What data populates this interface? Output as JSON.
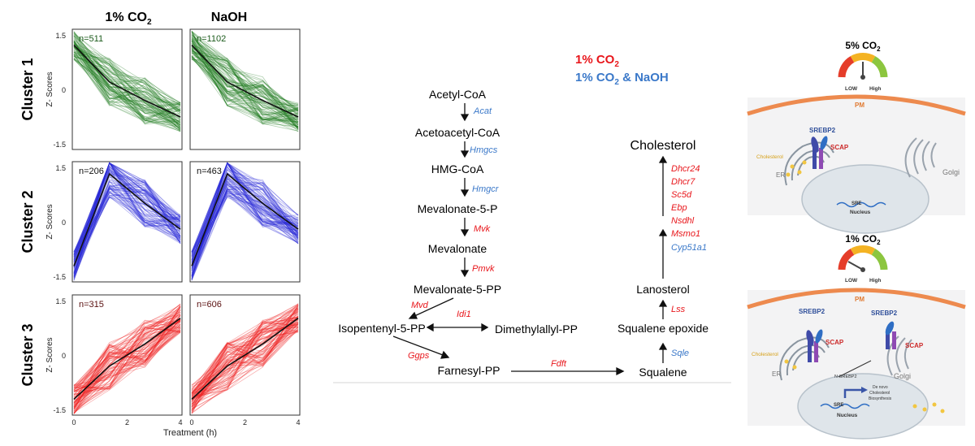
{
  "panelA": {
    "columns": [
      "1% CO",
      "NaOH"
    ],
    "subscript": "2",
    "xlabel": "Treatment (h)",
    "ylabel": "Z- Scores",
    "xticks": [
      "0",
      "2",
      "4"
    ],
    "yticks": [
      "1.5",
      "0",
      "-1.5"
    ],
    "clusters": [
      {
        "label": "Cluster 1",
        "color": "#1f7a1f",
        "counts": [
          "n=511",
          "n=1102"
        ],
        "count_color": "#1a5a1a",
        "mean_profile": [
          1.2,
          0.2,
          -0.3,
          -0.75
        ]
      },
      {
        "label": "Cluster 2",
        "color": "#2828d8",
        "counts": [
          "n=206",
          "n=463"
        ],
        "count_color": "#111111",
        "mean_profile": [
          -1.2,
          1.3,
          0.5,
          -0.2
        ]
      },
      {
        "label": "Cluster 3",
        "color": "#ee1c1c",
        "counts": [
          "n=315",
          "n=606"
        ],
        "count_color": "#5a1010",
        "mean_profile": [
          -1.2,
          -0.3,
          0.3,
          1.0
        ]
      }
    ]
  },
  "pathway": {
    "legend": {
      "line1": "1% CO",
      "line2a": "1% CO",
      "line2b": " & NaOH",
      "sub": "2",
      "red": "#e8161b",
      "blue": "#3a78c9"
    },
    "metabolites": {
      "acetyl_coa": "Acetyl-CoA",
      "acetoacetyl_coa": "Acetoacetyl-CoA",
      "hmg_coa": "HMG-CoA",
      "mevalonate_5p": "Mevalonate-5-P",
      "mevalonate": "Mevalonate",
      "mevalonate_5pp": "Mevalonate-5-PP",
      "isopentenyl_5pp": "Isopentenyl-5-PP",
      "dimethylallyl_pp": "Dimethylallyl-PP",
      "farnesyl_pp": "Farnesyl-PP",
      "squalene": "Squalene",
      "squalene_epoxide": "Squalene epoxide",
      "lanosterol": "Lanosterol",
      "cholesterol": "Cholesterol"
    },
    "genes": {
      "acat": "Acat",
      "hmgcs": "Hmgcs",
      "hmgcr": "Hmgcr",
      "mvk": "Mvk",
      "pmvk": "Pmvk",
      "mvd": "Mvd",
      "idi1": "Idi1",
      "ggps": "Ggps",
      "fdft": "Fdft",
      "sqle": "Sqle",
      "lss": "Lss",
      "cyp51a1": "Cyp51a1",
      "msmo1": "Msmo1",
      "nsdhl": "Nsdhl",
      "ebp": "Ebp",
      "sc5d": "Sc5d",
      "dhcr7": "Dhcr7",
      "dhcr24": "Dhcr24"
    }
  },
  "cells": {
    "top": {
      "title": "5% CO",
      "sub": "2",
      "low": "LOW",
      "high": "High",
      "pm": "PM",
      "srebp2": "SREBP2",
      "scap": "SCAP",
      "cholesterol": "Cholesterol",
      "er": "ER",
      "golgi": "Golgi",
      "sre": "SRE",
      "nucleus": "Nucleus"
    },
    "bottom": {
      "title": "1% CO",
      "sub": "2",
      "low": "LOW",
      "high": "High",
      "pm": "PM",
      "srebp2_a": "SREBP2",
      "srebp2_b": "SREBP2",
      "scap_a": "SCAP",
      "scap_b": "SCAP",
      "cholesterol": "Cholesterol",
      "er": "ER",
      "golgi": "Golgi",
      "sre": "SRE",
      "nucleus": "Nucleus",
      "n_srebp2": "N-SREBP2",
      "de_novo_1": "De novo",
      "de_novo_2": "Cholesterol",
      "de_novo_3": "Biosynthesis"
    }
  }
}
